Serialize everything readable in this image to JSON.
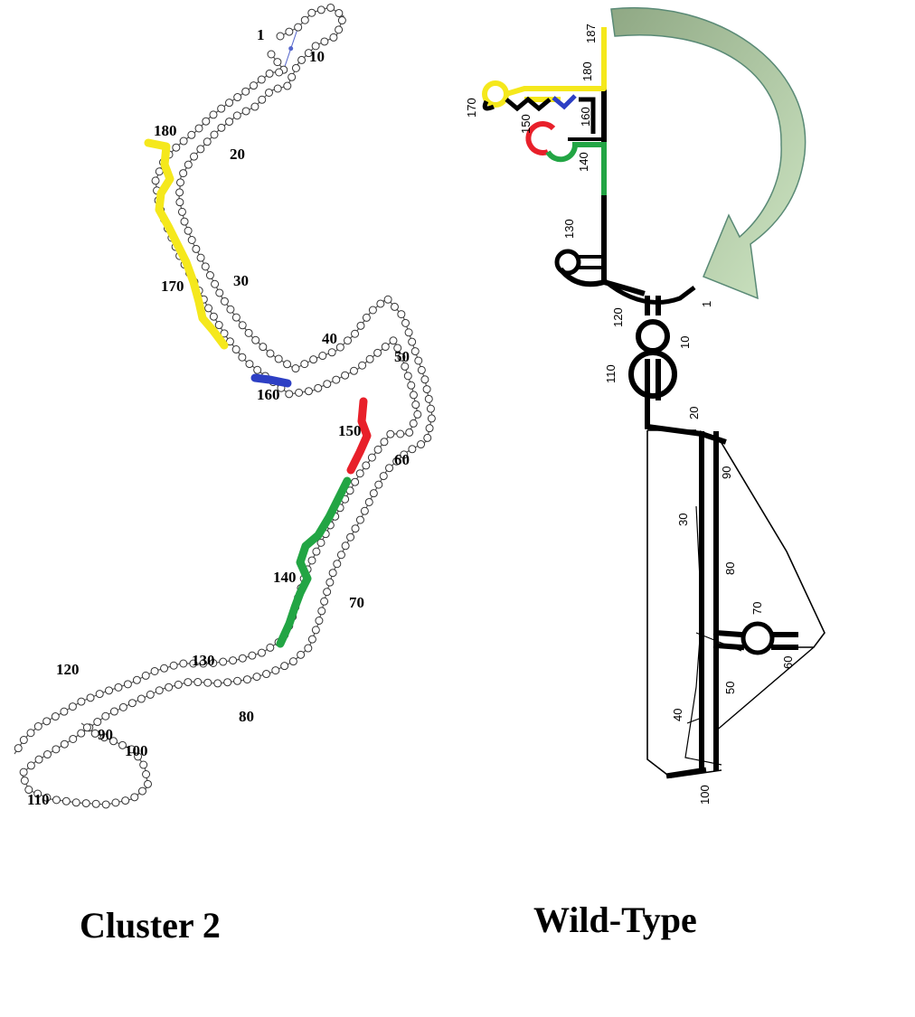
{
  "panels": [
    {
      "caption": "Cluster 2",
      "labels": [
        "1",
        "10",
        "20",
        "30",
        "40",
        "50",
        "60",
        "70",
        "80",
        "90",
        "100",
        "110",
        "120",
        "130",
        "140",
        "150",
        "160",
        "170",
        "180"
      ]
    },
    {
      "caption": "Wild-Type",
      "labels": [
        "187",
        "180",
        "170",
        "160",
        "150",
        "140",
        "130",
        "120",
        "110",
        "10",
        "1",
        "20",
        "30",
        "90",
        "80",
        "70",
        "60",
        "50",
        "40",
        "100"
      ]
    }
  ],
  "colors": {
    "yellow": "#f5e81c",
    "blue": "#2d3fc4",
    "red": "#e8202a",
    "green": "#22a544",
    "backbone": "#000000",
    "pairs": "#5566cc",
    "arrow_fill": "#a9c9a0",
    "arrow_stroke": "#5a8a76"
  }
}
